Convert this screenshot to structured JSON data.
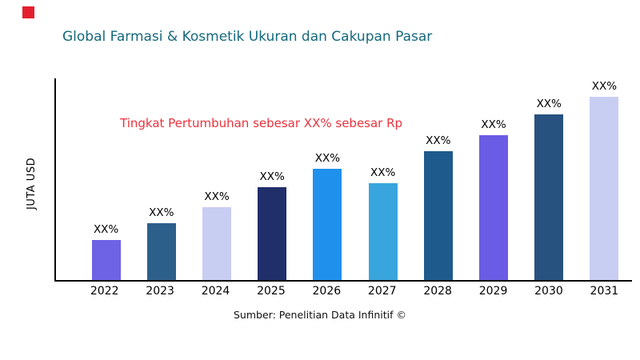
{
  "header": {
    "title": "Global Farmasi & Kosmetik Ukuran dan Cakupan Pasar"
  },
  "annotation": {
    "text": "Tingkat Pertumbuhan sebesar XX% sebesar Rp",
    "color": "#e8323c"
  },
  "source": {
    "text": "Sumber: Penelitian Data Infinitif ©"
  },
  "accent": {
    "logo_red": "#e41f2d",
    "title_teal": "#15697c"
  },
  "chart_data": {
    "type": "bar",
    "title": "Global Farmasi & Kosmetik Ukuran dan Cakupan Pasar",
    "xlabel": "",
    "ylabel": "JUTA USD",
    "categories": [
      "2022",
      "2023",
      "2024",
      "2025",
      "2026",
      "2027",
      "2028",
      "2029",
      "2030",
      "2031"
    ],
    "values": [
      20,
      28,
      36,
      46,
      55,
      48,
      64,
      72,
      82,
      91
    ],
    "bar_labels": [
      "XX%",
      "XX%",
      "XX%",
      "XX%",
      "XX%",
      "XX%",
      "XX%",
      "XX%",
      "XX%",
      "XX%"
    ],
    "bar_colors": [
      "#6e62e5",
      "#2d5f8b",
      "#c8cdf2",
      "#202e6a",
      "#2090ed",
      "#38a5dc",
      "#1e5b8c",
      "#6a5ce4",
      "#27517f",
      "#c8cdf2"
    ],
    "ylim": [
      0,
      100
    ],
    "grid": false,
    "legend": "none",
    "annotation": "Tingkat Pertumbuhan sebesar XX% sebesar Rp"
  }
}
